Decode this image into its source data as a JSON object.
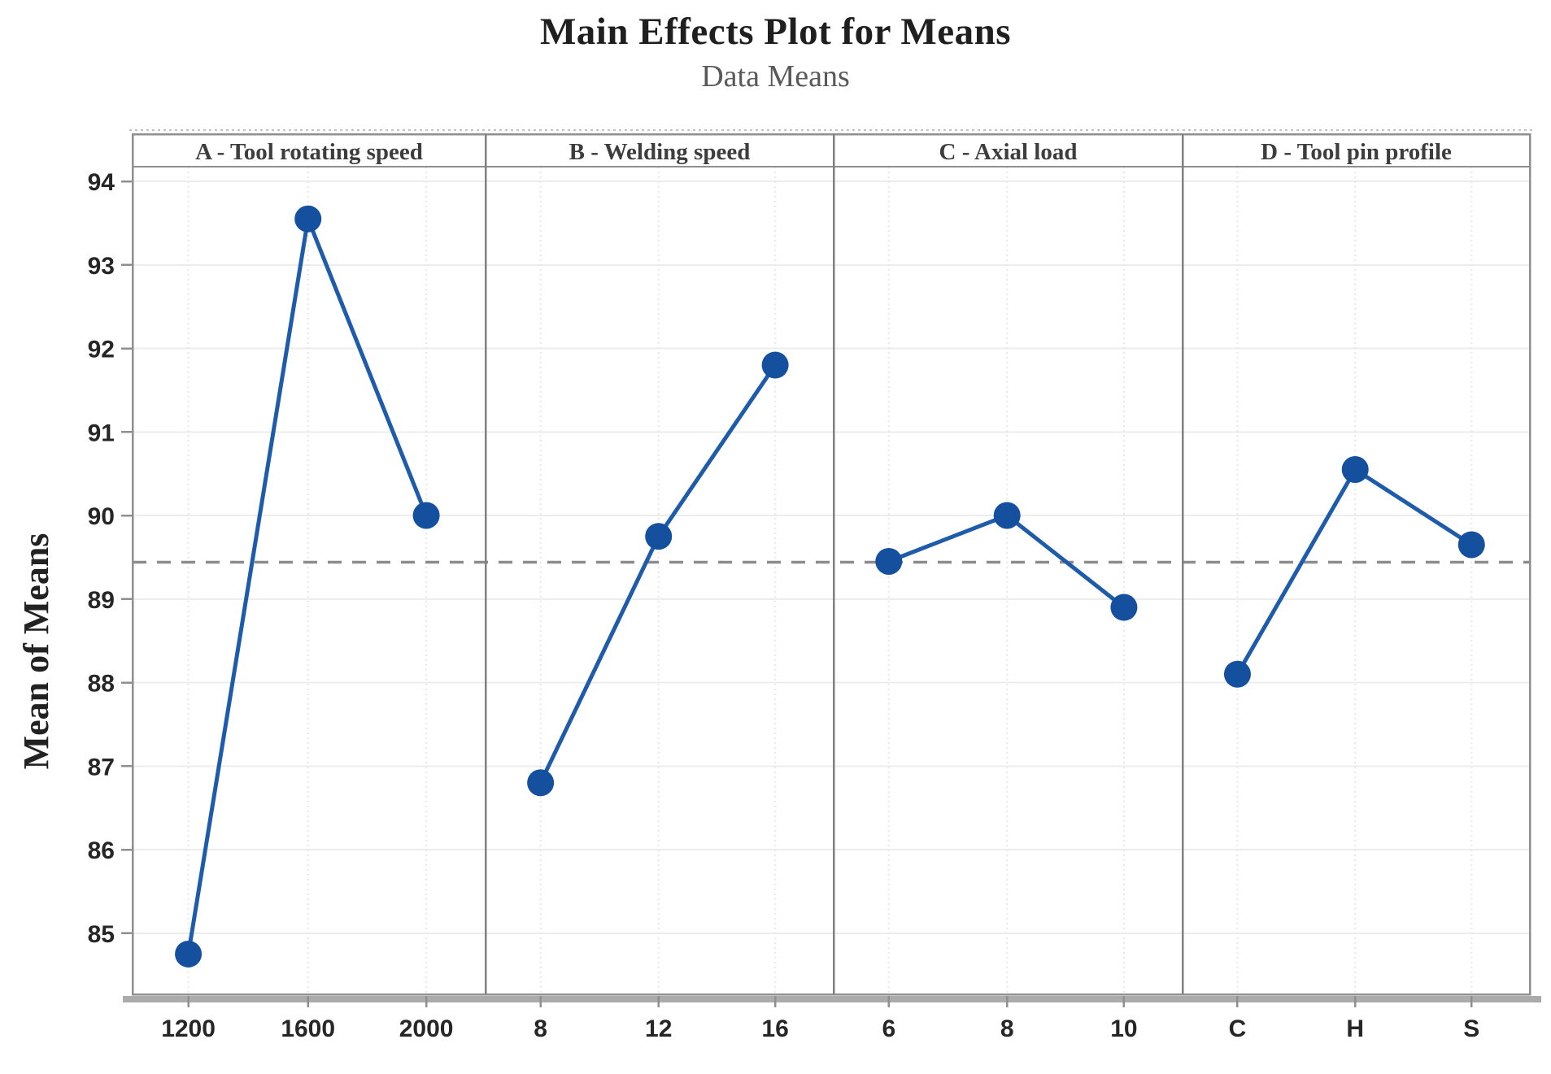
{
  "title": "Main Effects Plot for Means",
  "subtitle": "Data Means",
  "chart_data": {
    "type": "line",
    "title": "Main Effects Plot for Means",
    "subtitle": "Data Means",
    "ylabel": "Mean of Means",
    "xlabel": "",
    "ylim": [
      84.27,
      94.18
    ],
    "yticks": [
      85,
      86,
      87,
      88,
      89,
      90,
      91,
      92,
      93,
      94
    ],
    "reference_line_y": 89.44,
    "grid": true,
    "legend_position": "none",
    "panels": [
      {
        "label": "A - Tool rotating speed",
        "categories": [
          "1200",
          "1600",
          "2000"
        ],
        "values": [
          84.75,
          93.55,
          90.0
        ]
      },
      {
        "label": "B - Welding speed",
        "categories": [
          "8",
          "12",
          "16"
        ],
        "values": [
          86.8,
          89.75,
          91.8
        ]
      },
      {
        "label": "C - Axial load",
        "categories": [
          "6",
          "8",
          "10"
        ],
        "values": [
          89.45,
          90.0,
          88.9
        ]
      },
      {
        "label": "D - Tool pin profile",
        "categories": [
          "C",
          "H",
          "S"
        ],
        "values": [
          88.1,
          90.55,
          89.65
        ]
      }
    ],
    "colors": {
      "series_line": "#1e5cab",
      "marker": "#14509e",
      "reference_line": "#8c8c8c",
      "panel_border": "#808080",
      "frame_border": "#8f8f8f",
      "grid_line": "#ececec",
      "axis_shadow": "#ababab",
      "header_text": "#3d3d3d",
      "tick_text": "#262626",
      "title_text": "#1f1f1f",
      "subtitle_text": "#595959"
    }
  }
}
